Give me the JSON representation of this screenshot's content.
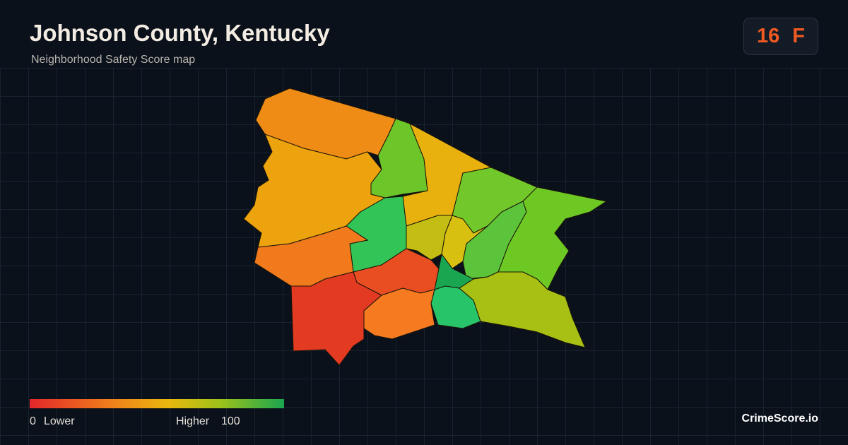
{
  "header": {
    "title": "Johnson County, Kentucky",
    "subtitle": "Neighborhood Safety Score map"
  },
  "score": {
    "value": "16",
    "grade": "F"
  },
  "legend": {
    "min": "0",
    "min_label": "Lower",
    "max_label": "Higher",
    "max": "100"
  },
  "brand": "CrimeScore.io"
}
